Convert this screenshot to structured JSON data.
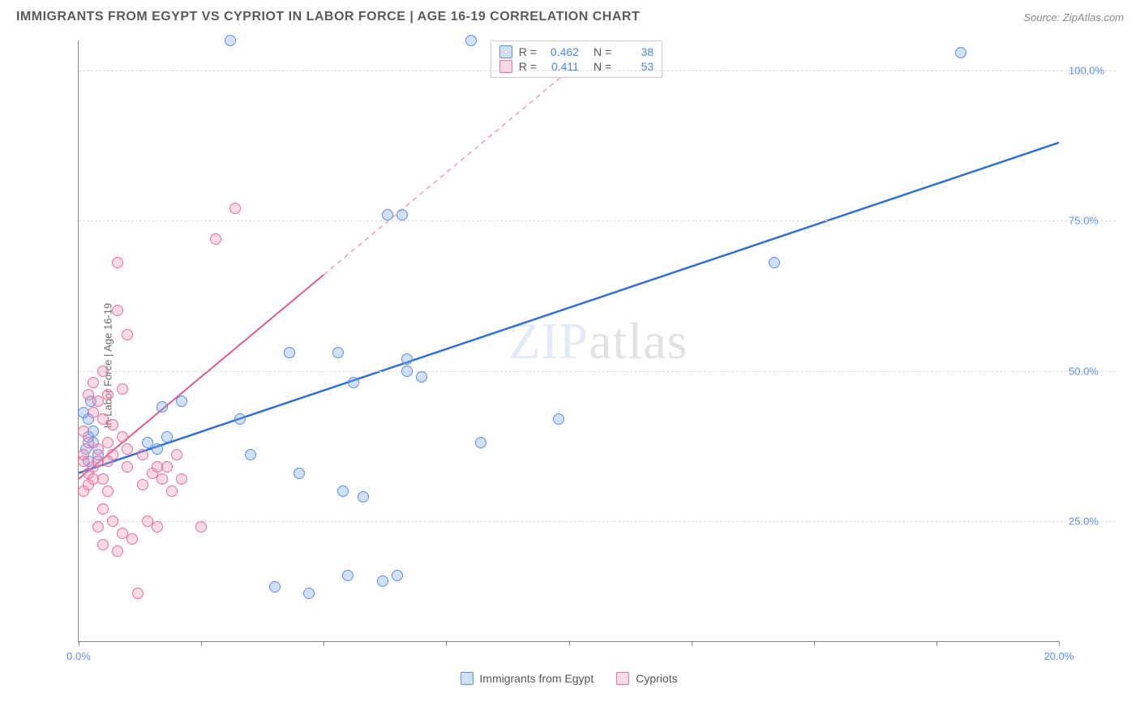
{
  "header": {
    "title": "IMMIGRANTS FROM EGYPT VS CYPRIOT IN LABOR FORCE | AGE 16-19 CORRELATION CHART",
    "source": "Source: ZipAtlas.com"
  },
  "chart": {
    "type": "scatter",
    "ylabel": "In Labor Force | Age 16-19",
    "xlim": [
      0,
      20
    ],
    "ylim": [
      5,
      105
    ],
    "y_ticks": [
      25,
      50,
      75,
      100
    ],
    "y_tick_labels": [
      "25.0%",
      "50.0%",
      "75.0%",
      "100.0%"
    ],
    "x_ticks": [
      0,
      2.5,
      5,
      7.5,
      10,
      12.5,
      15,
      17.5,
      20
    ],
    "x_tick_labels": {
      "0": "0.0%",
      "20": "20.0%"
    },
    "grid_color": "#dddddd",
    "axis_color": "#888888",
    "background": "#ffffff",
    "watermark": "ZIPatlas",
    "series": [
      {
        "name": "Immigrants from Egypt",
        "key": "egypt",
        "color_fill": "rgba(120,170,230,0.35)",
        "color_stroke": "#5b8def",
        "marker_size_px": 14,
        "R": 0.462,
        "N": 38,
        "trend": {
          "x1": 0,
          "y1": 33,
          "x2": 20,
          "y2": 88,
          "dash": false,
          "stroke": "#2f6fd6",
          "width": 2.5
        },
        "points": [
          {
            "x": 0.2,
            "y": 42
          },
          {
            "x": 0.3,
            "y": 38
          },
          {
            "x": 0.25,
            "y": 45
          },
          {
            "x": 0.2,
            "y": 35
          },
          {
            "x": 0.15,
            "y": 37
          },
          {
            "x": 0.3,
            "y": 40
          },
          {
            "x": 0.1,
            "y": 43
          },
          {
            "x": 0.4,
            "y": 36
          },
          {
            "x": 0.2,
            "y": 39
          },
          {
            "x": 1.4,
            "y": 38
          },
          {
            "x": 1.6,
            "y": 37
          },
          {
            "x": 1.7,
            "y": 44
          },
          {
            "x": 1.8,
            "y": 39
          },
          {
            "x": 2.1,
            "y": 45
          },
          {
            "x": 3.1,
            "y": 105
          },
          {
            "x": 3.3,
            "y": 42
          },
          {
            "x": 3.5,
            "y": 36
          },
          {
            "x": 4.0,
            "y": 14
          },
          {
            "x": 4.3,
            "y": 53
          },
          {
            "x": 4.5,
            "y": 33
          },
          {
            "x": 4.7,
            "y": 13
          },
          {
            "x": 5.3,
            "y": 53
          },
          {
            "x": 5.4,
            "y": 30
          },
          {
            "x": 5.5,
            "y": 16
          },
          {
            "x": 5.6,
            "y": 48
          },
          {
            "x": 5.8,
            "y": 29
          },
          {
            "x": 6.2,
            "y": 15
          },
          {
            "x": 6.3,
            "y": 76
          },
          {
            "x": 6.5,
            "y": 16
          },
          {
            "x": 6.6,
            "y": 76
          },
          {
            "x": 6.7,
            "y": 50
          },
          {
            "x": 6.7,
            "y": 52
          },
          {
            "x": 7.0,
            "y": 49
          },
          {
            "x": 8.0,
            "y": 105
          },
          {
            "x": 8.2,
            "y": 38
          },
          {
            "x": 9.8,
            "y": 42
          },
          {
            "x": 14.2,
            "y": 68
          },
          {
            "x": 18.0,
            "y": 103
          }
        ]
      },
      {
        "name": "Cypriots",
        "key": "cypriots",
        "color_fill": "rgba(240,150,180,0.35)",
        "color_stroke": "#e86ea0",
        "marker_size_px": 14,
        "R": 0.411,
        "N": 53,
        "trend_solid": {
          "x1": 0,
          "y1": 32,
          "x2": 5,
          "y2": 66,
          "stroke": "#e05a8c",
          "width": 2
        },
        "trend_dash": {
          "x1": 5,
          "y1": 66,
          "x2": 10,
          "y2": 100,
          "stroke": "#e8a0b8",
          "width": 1.5,
          "dash": true
        },
        "points": [
          {
            "x": 0.1,
            "y": 35
          },
          {
            "x": 0.2,
            "y": 33
          },
          {
            "x": 0.1,
            "y": 30
          },
          {
            "x": 0.2,
            "y": 31
          },
          {
            "x": 0.3,
            "y": 32
          },
          {
            "x": 0.1,
            "y": 36
          },
          {
            "x": 0.3,
            "y": 34
          },
          {
            "x": 0.2,
            "y": 38
          },
          {
            "x": 0.4,
            "y": 35
          },
          {
            "x": 0.1,
            "y": 40
          },
          {
            "x": 0.3,
            "y": 43
          },
          {
            "x": 0.4,
            "y": 45
          },
          {
            "x": 0.2,
            "y": 46
          },
          {
            "x": 0.5,
            "y": 42
          },
          {
            "x": 0.3,
            "y": 48
          },
          {
            "x": 0.5,
            "y": 50
          },
          {
            "x": 0.6,
            "y": 38
          },
          {
            "x": 0.7,
            "y": 36
          },
          {
            "x": 0.5,
            "y": 32
          },
          {
            "x": 0.6,
            "y": 30
          },
          {
            "x": 0.5,
            "y": 27
          },
          {
            "x": 0.7,
            "y": 25
          },
          {
            "x": 0.4,
            "y": 24
          },
          {
            "x": 0.9,
            "y": 23
          },
          {
            "x": 0.8,
            "y": 20
          },
          {
            "x": 0.5,
            "y": 21
          },
          {
            "x": 1.1,
            "y": 22
          },
          {
            "x": 1.2,
            "y": 13
          },
          {
            "x": 1.0,
            "y": 34
          },
          {
            "x": 1.0,
            "y": 37
          },
          {
            "x": 1.3,
            "y": 31
          },
          {
            "x": 1.5,
            "y": 33
          },
          {
            "x": 1.3,
            "y": 36
          },
          {
            "x": 1.6,
            "y": 34
          },
          {
            "x": 1.0,
            "y": 56
          },
          {
            "x": 0.8,
            "y": 60
          },
          {
            "x": 0.8,
            "y": 68
          },
          {
            "x": 1.4,
            "y": 25
          },
          {
            "x": 1.6,
            "y": 24
          },
          {
            "x": 1.7,
            "y": 32
          },
          {
            "x": 1.9,
            "y": 30
          },
          {
            "x": 1.8,
            "y": 34
          },
          {
            "x": 2.0,
            "y": 36
          },
          {
            "x": 2.1,
            "y": 32
          },
          {
            "x": 2.5,
            "y": 24
          },
          {
            "x": 2.8,
            "y": 72
          },
          {
            "x": 3.2,
            "y": 77
          },
          {
            "x": 0.9,
            "y": 47
          },
          {
            "x": 0.6,
            "y": 46
          },
          {
            "x": 0.7,
            "y": 41
          },
          {
            "x": 0.4,
            "y": 37
          },
          {
            "x": 0.6,
            "y": 35
          },
          {
            "x": 0.9,
            "y": 39
          }
        ]
      }
    ],
    "correlation_box": {
      "rows": [
        {
          "swatch": "blue",
          "r_label": "R =",
          "r_val": "0.462",
          "n_label": "N =",
          "n_val": "38"
        },
        {
          "swatch": "pink",
          "r_label": "R =",
          "r_val": "0.411",
          "n_label": "N =",
          "n_val": "53"
        }
      ]
    },
    "bottom_legend": [
      {
        "swatch": "blue",
        "label": "Immigrants from Egypt"
      },
      {
        "swatch": "pink",
        "label": "Cypriots"
      }
    ]
  }
}
